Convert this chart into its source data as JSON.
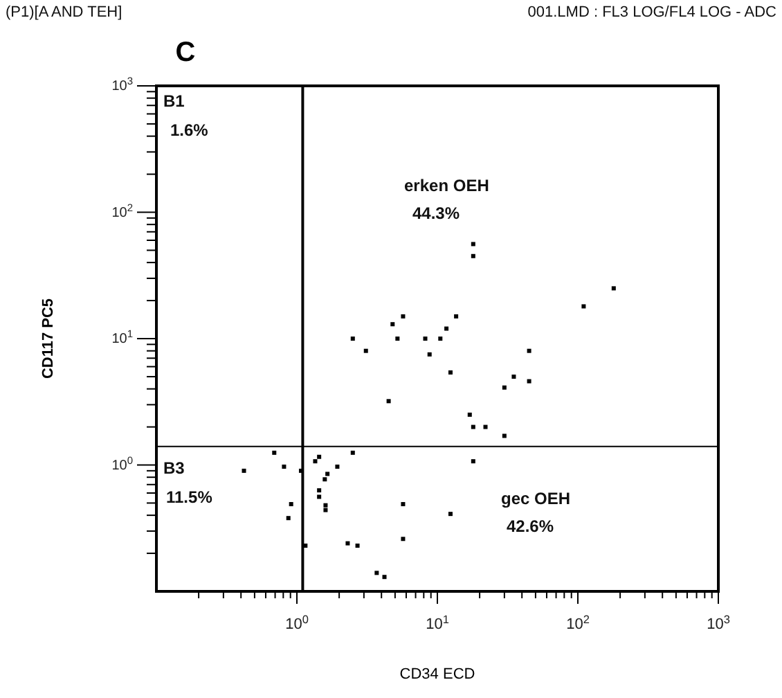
{
  "chart_data": {
    "type": "scatter",
    "title": "C",
    "xlabel": "CD34 ECD",
    "ylabel": "CD117 PC5",
    "log": "xy",
    "marker": "square",
    "xlim": [
      0.1,
      1000
    ],
    "ylim": [
      0.1,
      1000
    ],
    "xticks": [
      {
        "value": 0.2,
        "label": null
      },
      {
        "value": 0.3,
        "label": null
      },
      {
        "value": 0.4,
        "label": null
      },
      {
        "value": 0.5,
        "label": null
      },
      {
        "value": 0.6,
        "label": null
      },
      {
        "value": 0.7,
        "label": null
      },
      {
        "value": 0.8,
        "label": null
      },
      {
        "value": 0.9,
        "label": null
      },
      {
        "value": 1,
        "label": "10$^{0}$"
      },
      {
        "value": 2,
        "label": null
      },
      {
        "value": 3,
        "label": null
      },
      {
        "value": 4,
        "label": null
      },
      {
        "value": 5,
        "label": null
      },
      {
        "value": 6,
        "label": null
      },
      {
        "value": 7,
        "label": null
      },
      {
        "value": 8,
        "label": null
      },
      {
        "value": 9,
        "label": null
      },
      {
        "value": 10,
        "label": "10$^{1}$"
      },
      {
        "value": 20,
        "label": null
      },
      {
        "value": 30,
        "label": null
      },
      {
        "value": 40,
        "label": null
      },
      {
        "value": 50,
        "label": null
      },
      {
        "value": 60,
        "label": null
      },
      {
        "value": 70,
        "label": null
      },
      {
        "value": 80,
        "label": null
      },
      {
        "value": 90,
        "label": null
      },
      {
        "value": 100,
        "label": "10$^{2}$"
      },
      {
        "value": 200,
        "label": null
      },
      {
        "value": 300,
        "label": null
      },
      {
        "value": 400,
        "label": null
      },
      {
        "value": 500,
        "label": null
      },
      {
        "value": 600,
        "label": null
      },
      {
        "value": 700,
        "label": null
      },
      {
        "value": 800,
        "label": null
      },
      {
        "value": 900,
        "label": null
      },
      {
        "value": 1000,
        "label": "10$^{3}$"
      }
    ],
    "yticks": [
      {
        "value": 0.2,
        "label": null
      },
      {
        "value": 0.3,
        "label": null
      },
      {
        "value": 0.4,
        "label": null
      },
      {
        "value": 0.5,
        "label": null
      },
      {
        "value": 0.6,
        "label": null
      },
      {
        "value": 0.7,
        "label": null
      },
      {
        "value": 0.8,
        "label": null
      },
      {
        "value": 0.9,
        "label": null
      },
      {
        "value": 1,
        "label": "10$^{0}$"
      },
      {
        "value": 2,
        "label": null
      },
      {
        "value": 3,
        "label": null
      },
      {
        "value": 4,
        "label": null
      },
      {
        "value": 5,
        "label": null
      },
      {
        "value": 6,
        "label": null
      },
      {
        "value": 7,
        "label": null
      },
      {
        "value": 8,
        "label": null
      },
      {
        "value": 9,
        "label": null
      },
      {
        "value": 10,
        "label": "10$^{1}$"
      },
      {
        "value": 20,
        "label": null
      },
      {
        "value": 30,
        "label": null
      },
      {
        "value": 40,
        "label": null
      },
      {
        "value": 50,
        "label": null
      },
      {
        "value": 60,
        "label": null
      },
      {
        "value": 70,
        "label": null
      },
      {
        "value": 80,
        "label": null
      },
      {
        "value": 90,
        "label": null
      },
      {
        "value": 100,
        "label": "10$^{2}$"
      },
      {
        "value": 200,
        "label": null
      },
      {
        "value": 300,
        "label": null
      },
      {
        "value": 400,
        "label": null
      },
      {
        "value": 500,
        "label": null
      },
      {
        "value": 600,
        "label": null
      },
      {
        "value": 700,
        "label": null
      },
      {
        "value": 800,
        "label": null
      },
      {
        "value": 900,
        "label": null
      },
      {
        "value": 1000,
        "label": "10$^{3}$"
      }
    ],
    "ref_lines": [
      {
        "axis": "x",
        "value": 1.1,
        "color": "#000000"
      },
      {
        "axis": "y",
        "value": 1.4,
        "color": "#000000"
      }
    ],
    "series": [
      {
        "color": "#000000",
        "x": [
          5.7,
          4.8,
          13.6,
          11.6,
          2.5,
          5.2,
          8.2,
          10.5,
          3.1,
          8.8,
          12.4,
          4.5,
          0.69,
          0.42,
          0.81,
          1.07,
          0.91,
          0.87,
          1.35,
          1.44,
          1.94,
          1.65,
          1.58,
          1.44,
          1.44,
          2.5,
          5.7,
          12.4,
          5.7,
          1.15,
          2.3,
          2.7,
          3.7,
          4.2,
          18,
          18,
          180,
          110,
          45,
          35,
          45,
          30,
          17,
          18,
          22,
          30,
          18,
          1.6,
          1.6
        ],
        "values": [
          15,
          13,
          15,
          12,
          10,
          10,
          10,
          10,
          8,
          7.5,
          5.4,
          3.2,
          1.25,
          0.9,
          0.97,
          0.9,
          0.49,
          0.38,
          1.07,
          1.16,
          0.97,
          0.85,
          0.77,
          0.63,
          0.56,
          1.25,
          0.49,
          0.41,
          0.26,
          0.23,
          0.24,
          0.23,
          0.14,
          0.13,
          56,
          45,
          25,
          18,
          8,
          5,
          4.6,
          4.1,
          2.5,
          2,
          2,
          1.7,
          1.07,
          0.48,
          0.44
        ]
      }
    ],
    "annotations": [
      "(P1)[A AND TEH]",
      "001.LMD : FL3 LOG/FL4 LOG - ADC",
      "B1",
      "1.6%",
      "erken OEH",
      "44.3%",
      "B3",
      "11.5%",
      "gec OEH",
      "42.6%"
    ]
  }
}
